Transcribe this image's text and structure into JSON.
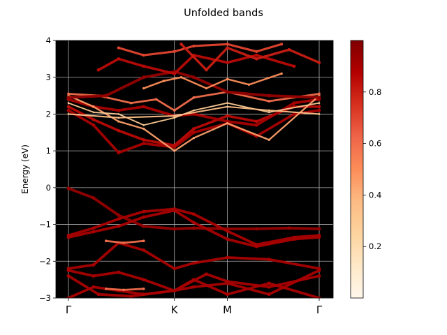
{
  "chart_data": {
    "type": "scatter",
    "title": "Unfolded bands",
    "ylabel": "Energy (eV)",
    "xlabel": "",
    "ylim": [
      -3,
      4
    ],
    "yticks": [
      -3,
      -2,
      -1,
      0,
      1,
      2,
      3,
      4
    ],
    "grid": true,
    "background": "#000000",
    "kpath": {
      "labels": [
        "Γ",
        "K",
        "M",
        "Γ"
      ],
      "positions": [
        0.0,
        0.4226,
        0.6339,
        1.0
      ]
    },
    "colorbar": {
      "colormap": "OrRd",
      "range": [
        0.0,
        1.0
      ],
      "ticks": [
        0.2,
        0.4,
        0.6,
        0.8
      ],
      "tick_labels": [
        "0.2",
        "0.4",
        "0.6",
        "0.8"
      ],
      "stops": [
        "#fff7ec",
        "#fee8c8",
        "#fdd49e",
        "#fdbb84",
        "#fc8d59",
        "#ef6548",
        "#d7301f",
        "#b30000",
        "#7f0000"
      ]
    },
    "series": [
      {
        "weight": 0.95,
        "x": [
          0.0,
          0.1,
          0.2,
          0.3,
          0.4226
        ],
        "y": [
          -0.02,
          -0.28,
          -0.75,
          -1.05,
          -1.12
        ]
      },
      {
        "weight": 0.95,
        "x": [
          0.4226,
          0.5,
          0.6339,
          0.75,
          0.88,
          1.0
        ],
        "y": [
          -1.12,
          -1.1,
          -1.12,
          -1.12,
          -1.1,
          -1.12
        ]
      },
      {
        "weight": 0.9,
        "x": [
          0.0,
          0.1,
          0.2,
          0.3,
          0.4226,
          0.5,
          0.6339,
          0.75,
          0.9,
          1.0
        ],
        "y": [
          -1.3,
          -1.1,
          -0.85,
          -0.65,
          -0.58,
          -0.72,
          -1.18,
          -1.55,
          -1.35,
          -1.3
        ]
      },
      {
        "weight": 0.9,
        "x": [
          0.0,
          0.1,
          0.2,
          0.3,
          0.4226,
          0.5,
          0.6339,
          0.75,
          0.9,
          1.0
        ],
        "y": [
          -1.35,
          -1.2,
          -1.05,
          -0.8,
          -0.62,
          -0.95,
          -1.4,
          -1.6,
          -1.4,
          -1.35
        ]
      },
      {
        "weight": 0.9,
        "x": [
          0.0,
          0.1,
          0.2,
          0.3,
          0.4226,
          0.5,
          0.6339,
          0.8,
          1.0
        ],
        "y": [
          -2.2,
          -2.1,
          -1.5,
          -1.7,
          -2.2,
          -2.05,
          -1.9,
          -1.95,
          -2.2
        ]
      },
      {
        "weight": 0.9,
        "x": [
          0.0,
          0.1,
          0.2,
          0.3,
          0.4226,
          0.5,
          0.6339,
          0.8,
          1.0
        ],
        "y": [
          -2.25,
          -2.4,
          -2.3,
          -2.5,
          -2.8,
          -2.7,
          -2.6,
          -2.9,
          -2.25
        ]
      },
      {
        "weight": 0.9,
        "x": [
          0.0,
          0.12,
          0.25,
          0.4226,
          0.55,
          0.6339,
          0.8,
          1.0
        ],
        "y": [
          -2.4,
          -2.9,
          -2.95,
          -2.8,
          -2.35,
          -2.55,
          -2.7,
          -2.4
        ]
      },
      {
        "weight": 0.9,
        "x": [
          0.0,
          0.1,
          0.2,
          0.3,
          0.4226,
          0.5,
          0.6339,
          0.8,
          1.0
        ],
        "y": [
          -3.0,
          -2.7,
          -2.8,
          -2.9,
          -2.8,
          -2.5,
          -2.9,
          -2.6,
          -3.0
        ]
      },
      {
        "weight": 0.6,
        "x": [
          0.15,
          0.22,
          0.3
        ],
        "y": [
          -1.45,
          -1.5,
          -1.45
        ]
      },
      {
        "weight": 0.6,
        "x": [
          0.15,
          0.22,
          0.3
        ],
        "y": [
          -2.75,
          -2.78,
          -2.75
        ]
      },
      {
        "weight": 0.9,
        "x": [
          0.0,
          0.1,
          0.2,
          0.3,
          0.4226,
          0.5,
          0.6339,
          0.75,
          0.9,
          1.0
        ],
        "y": [
          2.1,
          1.7,
          0.95,
          1.2,
          1.1,
          1.5,
          1.75,
          1.4,
          2.0,
          2.1
        ]
      },
      {
        "weight": 0.85,
        "x": [
          0.0,
          0.1,
          0.2,
          0.3,
          0.4226,
          0.5,
          0.6339,
          0.75,
          0.9,
          1.0
        ],
        "y": [
          2.2,
          1.85,
          1.55,
          1.3,
          1.15,
          1.6,
          1.95,
          1.8,
          2.2,
          2.2
        ]
      },
      {
        "weight": 0.9,
        "x": [
          0.0,
          0.1,
          0.2,
          0.3,
          0.4226,
          0.5,
          0.6339,
          0.75,
          0.9,
          1.0
        ],
        "y": [
          2.4,
          2.2,
          2.1,
          2.2,
          1.95,
          2.0,
          1.8,
          1.7,
          2.3,
          2.4
        ]
      },
      {
        "weight": 0.45,
        "x": [
          0.0,
          0.1,
          0.2,
          0.3,
          0.4226,
          0.5,
          0.6339,
          0.8,
          1.0
        ],
        "y": [
          2.5,
          2.2,
          1.8,
          1.6,
          1.0,
          1.35,
          1.75,
          1.3,
          2.5
        ]
      },
      {
        "weight": 0.3,
        "x": [
          0.0,
          0.1,
          0.2,
          0.3,
          0.4226,
          0.5,
          0.6339,
          0.8,
          1.0
        ],
        "y": [
          2.3,
          2.05,
          2.0,
          1.7,
          1.9,
          2.1,
          2.3,
          2.05,
          2.3
        ]
      },
      {
        "weight": 0.6,
        "x": [
          0.0,
          0.12,
          0.25,
          0.35,
          0.4226,
          0.5,
          0.6339,
          0.8,
          1.0
        ],
        "y": [
          2.55,
          2.5,
          2.3,
          2.4,
          2.1,
          2.45,
          2.6,
          2.35,
          2.55
        ]
      },
      {
        "weight": 0.95,
        "x": [
          0.0,
          0.15,
          0.3,
          0.4226,
          0.5,
          0.6339,
          0.8,
          1.0
        ],
        "y": [
          2.45,
          2.5,
          3.0,
          3.15,
          3.0,
          2.6,
          2.5,
          2.45
        ]
      },
      {
        "weight": 0.85,
        "x": [
          0.12,
          0.2,
          0.3,
          0.4226,
          0.5,
          0.6339,
          0.75,
          0.9
        ],
        "y": [
          3.2,
          3.5,
          3.3,
          3.1,
          3.6,
          3.4,
          3.6,
          3.3
        ]
      },
      {
        "weight": 0.7,
        "x": [
          0.2,
          0.3,
          0.4226,
          0.5,
          0.6339,
          0.75,
          0.85
        ],
        "y": [
          3.8,
          3.6,
          3.7,
          3.85,
          3.9,
          3.7,
          3.9
        ]
      },
      {
        "weight": 0.5,
        "x": [
          0.3,
          0.38,
          0.45,
          0.55,
          0.6339,
          0.72,
          0.85
        ],
        "y": [
          2.7,
          2.9,
          3.0,
          2.7,
          2.95,
          2.8,
          3.1
        ]
      },
      {
        "weight": 0.35,
        "x": [
          0.0,
          0.2,
          0.4226,
          0.6339,
          0.8,
          1.0
        ],
        "y": [
          2.0,
          1.9,
          1.95,
          2.2,
          2.1,
          2.0
        ]
      },
      {
        "weight": 0.8,
        "x": [
          0.45,
          0.55,
          0.6339,
          0.75,
          0.88,
          1.0
        ],
        "y": [
          3.9,
          3.2,
          3.8,
          3.5,
          3.75,
          3.4
        ]
      }
    ]
  }
}
